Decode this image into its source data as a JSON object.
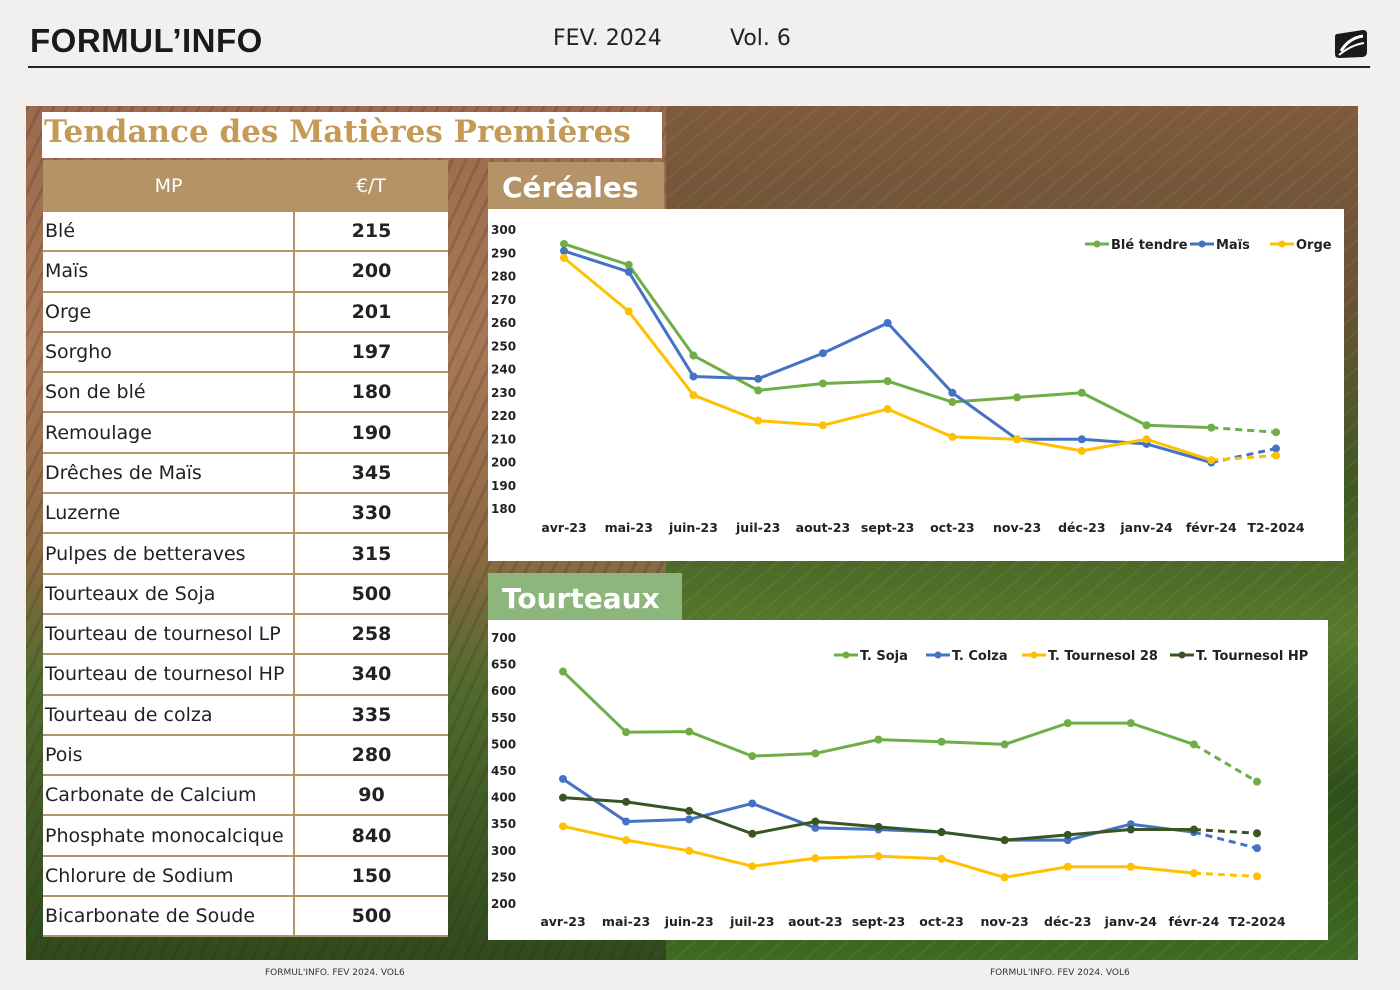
{
  "header": {
    "brand": "FORMUL’INFO",
    "date": "FEV. 2024",
    "volume": "Vol. 6"
  },
  "title": "Tendance des Matières Premières",
  "table": {
    "headers": [
      "MP",
      "€/T"
    ],
    "rows": [
      {
        "name": "Blé",
        "price": "215"
      },
      {
        "name": "Maïs",
        "price": "200"
      },
      {
        "name": "Orge",
        "price": "201"
      },
      {
        "name": "Sorgho",
        "price": "197"
      },
      {
        "name": "Son de blé",
        "price": "180"
      },
      {
        "name": "Remoulage",
        "price": "190"
      },
      {
        "name": "Drêches de Maïs",
        "price": "345"
      },
      {
        "name": "Luzerne",
        "price": "330"
      },
      {
        "name": "Pulpes de betteraves",
        "price": "315"
      },
      {
        "name": "Tourteaux de Soja",
        "price": "500"
      },
      {
        "name": "Tourteau de tournesol LP",
        "price": "258"
      },
      {
        "name": "Tourteau de tournesol HP",
        "price": "340"
      },
      {
        "name": "Tourteau de colza",
        "price": "335"
      },
      {
        "name": "Pois",
        "price": "280"
      },
      {
        "name": "Carbonate de Calcium",
        "price": "90"
      },
      {
        "name": "Phosphate monocalcique",
        "price": "840"
      },
      {
        "name": "Chlorure de Sodium",
        "price": "150"
      },
      {
        "name": "Bicarbonate de Soude",
        "price": "500"
      }
    ]
  },
  "tabs": {
    "cereales": "Céréales",
    "tourteaux": "Tourteaux"
  },
  "chart_data": [
    {
      "type": "line",
      "id": "cereales",
      "title": "",
      "categories": [
        "avr-23",
        "mai-23",
        "juin-23",
        "juil-23",
        "aout-23",
        "sept-23",
        "oct-23",
        "nov-23",
        "déc-23",
        "janv-24",
        "févr-24",
        "T2-2024"
      ],
      "ylim": [
        180,
        300
      ],
      "yticks": [
        180,
        190,
        200,
        210,
        220,
        230,
        240,
        250,
        260,
        270,
        280,
        290,
        300
      ],
      "grid": false,
      "legend_position": "top-right",
      "forecast_from_index": 10,
      "series": [
        {
          "name": "Blé tendre",
          "color": "#70ad47",
          "values": [
            294,
            285,
            246,
            231,
            234,
            235,
            226,
            228,
            230,
            216,
            215,
            213
          ]
        },
        {
          "name": "Maïs",
          "color": "#4472c4",
          "values": [
            291,
            282,
            237,
            236,
            247,
            260,
            230,
            210,
            210,
            208,
            200,
            206
          ]
        },
        {
          "name": "Orge",
          "color": "#ffc000",
          "values": [
            288,
            265,
            229,
            218,
            216,
            223,
            211,
            210,
            205,
            210,
            201,
            203
          ]
        }
      ]
    },
    {
      "type": "line",
      "id": "tourteaux",
      "title": "",
      "categories": [
        "avr-23",
        "mai-23",
        "juin-23",
        "juil-23",
        "aout-23",
        "sept-23",
        "oct-23",
        "nov-23",
        "déc-23",
        "janv-24",
        "févr-24",
        "T2-2024"
      ],
      "ylim": [
        200,
        700
      ],
      "yticks": [
        200,
        250,
        300,
        350,
        400,
        450,
        500,
        550,
        600,
        650,
        700
      ],
      "grid": false,
      "legend_position": "top-right",
      "forecast_from_index": 10,
      "series": [
        {
          "name": "T. Soja",
          "color": "#70ad47",
          "values": [
            637,
            523,
            524,
            478,
            483,
            509,
            505,
            500,
            540,
            540,
            500,
            430
          ]
        },
        {
          "name": "T. Colza",
          "color": "#4472c4",
          "values": [
            435,
            355,
            359,
            389,
            343,
            340,
            335,
            320,
            320,
            350,
            335,
            305
          ]
        },
        {
          "name": "T. Tournesol 28",
          "color": "#ffc000",
          "values": [
            346,
            320,
            300,
            271,
            286,
            290,
            285,
            250,
            270,
            270,
            258,
            252
          ]
        },
        {
          "name": "T. Tournesol HP",
          "color": "#375623",
          "values": [
            400,
            392,
            375,
            332,
            355,
            345,
            335,
            320,
            330,
            340,
            340,
            333
          ]
        }
      ]
    }
  ],
  "footer": {
    "left": "FORMUL'INFO. FEV 2024. VOL6",
    "right": "FORMUL'INFO. FEV 2024. VOL6"
  }
}
